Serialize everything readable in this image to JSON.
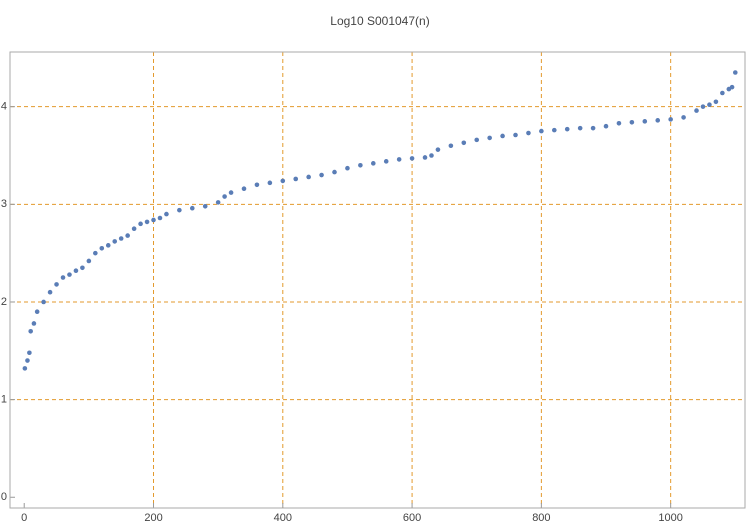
{
  "chart_data": {
    "type": "scatter",
    "title": "Log10 S001047(n)",
    "x": [
      1,
      5,
      8,
      10,
      15,
      20,
      30,
      40,
      50,
      60,
      70,
      80,
      90,
      100,
      110,
      120,
      130,
      140,
      150,
      160,
      170,
      180,
      190,
      200,
      210,
      220,
      240,
      260,
      280,
      300,
      310,
      320,
      340,
      360,
      380,
      400,
      420,
      440,
      460,
      480,
      500,
      520,
      540,
      560,
      580,
      600,
      620,
      630,
      640,
      660,
      680,
      700,
      720,
      740,
      760,
      780,
      800,
      820,
      840,
      860,
      880,
      900,
      920,
      940,
      960,
      980,
      1000,
      1020,
      1040,
      1050,
      1060,
      1070,
      1080,
      1090,
      1095,
      1100
    ],
    "series": [
      {
        "color": "#5a7db6",
        "values": [
          1.32,
          1.4,
          1.48,
          1.7,
          1.78,
          1.9,
          2.0,
          2.1,
          2.18,
          2.25,
          2.28,
          2.32,
          2.35,
          2.42,
          2.5,
          2.55,
          2.58,
          2.62,
          2.65,
          2.68,
          2.75,
          2.8,
          2.82,
          2.84,
          2.86,
          2.9,
          2.94,
          2.96,
          2.98,
          3.02,
          3.08,
          3.12,
          3.16,
          3.2,
          3.22,
          3.24,
          3.26,
          3.28,
          3.3,
          3.33,
          3.37,
          3.4,
          3.42,
          3.44,
          3.46,
          3.47,
          3.48,
          3.5,
          3.56,
          3.6,
          3.63,
          3.66,
          3.68,
          3.7,
          3.71,
          3.73,
          3.75,
          3.76,
          3.77,
          3.78,
          3.78,
          3.8,
          3.83,
          3.84,
          3.85,
          3.86,
          3.87,
          3.89,
          3.96,
          4.0,
          4.02,
          4.05,
          4.14,
          4.18,
          4.2,
          4.35
        ]
      }
    ],
    "xlim": [
      -22,
      1115
    ],
    "ylim": [
      -0.11,
      4.56
    ],
    "xticks": [
      0,
      200,
      400,
      600,
      800,
      1000
    ],
    "yticks": [
      0,
      1,
      2,
      3,
      4
    ],
    "grid_color": "#e39a2d"
  }
}
